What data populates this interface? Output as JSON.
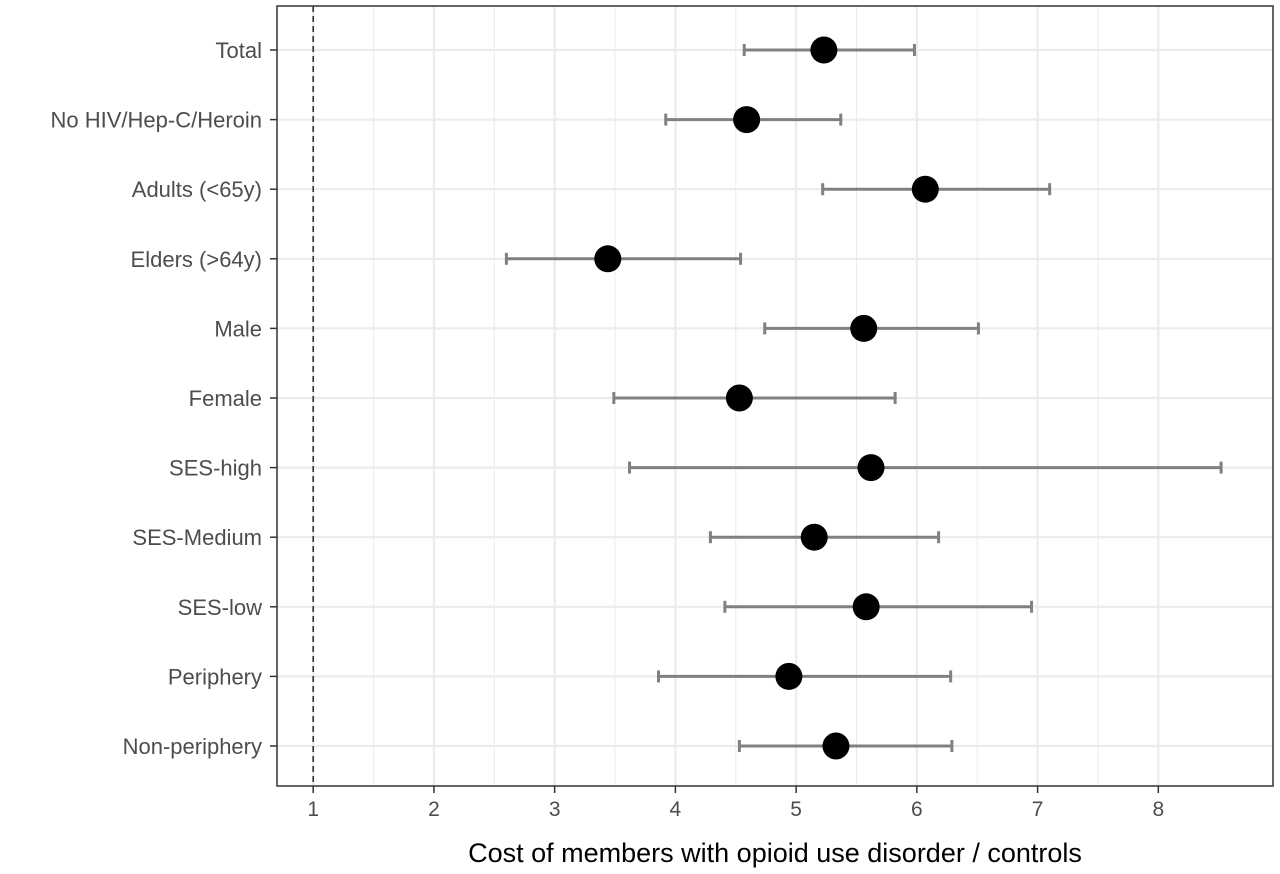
{
  "chart_data": {
    "type": "scatter",
    "subtype": "forest-plot",
    "title": "",
    "xlabel": "Cost of members with opioid use disorder / controls",
    "ylabel": "",
    "xlim": [
      0.7,
      8.95
    ],
    "x_ticks": [
      1,
      2,
      3,
      4,
      5,
      6,
      7,
      8
    ],
    "reference_line": {
      "x": 1,
      "style": "dashed"
    },
    "grid": true,
    "legend": "none",
    "colors": {
      "point": "#000000",
      "errorbar": "#808080",
      "grid": "#ebebeb",
      "border": "#333333"
    },
    "categories": [
      "Total",
      "No HIV/Hep-C/Heroin",
      "Adults (<65y)",
      "Elders (>64y)",
      "Male",
      "Female",
      "SES-high",
      "SES-Medium",
      "SES-low",
      "Periphery",
      "Non-periphery"
    ],
    "estimates": [
      5.23,
      4.59,
      6.07,
      3.44,
      5.56,
      4.53,
      5.62,
      5.15,
      5.58,
      4.94,
      5.33
    ],
    "lower": [
      4.57,
      3.92,
      5.22,
      2.6,
      4.74,
      3.49,
      3.62,
      4.29,
      4.41,
      3.86,
      4.53
    ],
    "upper": [
      5.98,
      5.37,
      7.1,
      4.54,
      6.51,
      5.82,
      8.52,
      6.18,
      6.95,
      6.28,
      6.29
    ]
  }
}
